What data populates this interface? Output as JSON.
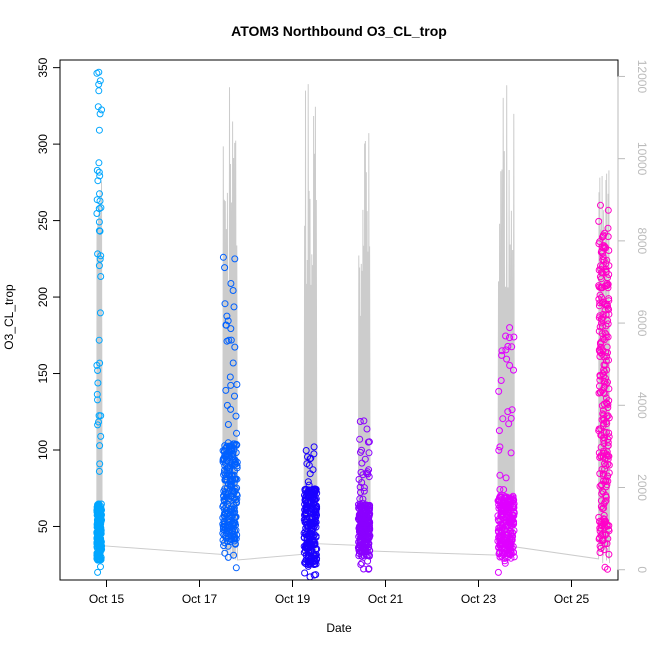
{
  "chart_data": {
    "type": "scatter",
    "title": "ATOM3 Northbound O3_CL_trop",
    "xlabel": "Date",
    "ylabel": "O3_CL_trop",
    "x_ticks": [
      "Oct 15",
      "Oct 17",
      "Oct 19",
      "Oct 21",
      "Oct 23",
      "Oct 25"
    ],
    "y_ticks": [
      "50",
      "100",
      "150",
      "200",
      "250",
      "300",
      "350"
    ],
    "y2_ticks": [
      "0",
      "2000",
      "4000",
      "6000",
      "8000",
      "10000",
      "12000"
    ],
    "xlim": [
      "2017-10-14",
      "2017-10-26"
    ],
    "ylim": [
      15,
      355
    ],
    "y2lim": [
      -250,
      12400
    ],
    "grid": false,
    "legend": "none",
    "colors": {
      "altitude_line": "#cccccc",
      "right_axis": "#bbbbbb",
      "axis": "#000000"
    },
    "series": [
      {
        "date": "2017-10-14",
        "start_hour": 19.0,
        "end_hour": 21.5,
        "color": "#00a6ff",
        "o3_min": 20,
        "o3_max": 347,
        "o3_typical": [
          28,
          65
        ],
        "alt_max": 9800
      },
      {
        "date": "2017-10-17",
        "start_hour": 12.0,
        "end_hour": 19.5,
        "color": "#0060ff",
        "o3_min": 23,
        "o3_max": 226,
        "o3_typical": [
          40,
          105
        ],
        "alt_max": 12300
      },
      {
        "date": "2017-10-19",
        "start_hour": 6.0,
        "end_hour": 12.5,
        "color": "#1a00ff",
        "o3_min": 17,
        "o3_max": 102,
        "o3_typical": [
          25,
          75
        ],
        "alt_max": 12000
      },
      {
        "date": "2017-10-20",
        "start_hour": 10.0,
        "end_hour": 16.0,
        "color": "#8a00ff",
        "o3_min": 22,
        "o3_max": 119,
        "o3_typical": [
          30,
          65
        ],
        "alt_max": 11200
      },
      {
        "date": "2017-10-23",
        "start_hour": 10.0,
        "end_hour": 18.5,
        "color": "#df00ff",
        "o3_min": 20,
        "o3_max": 180,
        "o3_typical": [
          30,
          70
        ],
        "alt_max": 11800
      },
      {
        "date": "2017-10-25",
        "start_hour": 14.0,
        "end_hour": 19.5,
        "color": "#ff00c8",
        "o3_min": 22,
        "o3_max": 260,
        "o3_typical": [
          35,
          245
        ],
        "alt_max": 10000
      }
    ]
  }
}
